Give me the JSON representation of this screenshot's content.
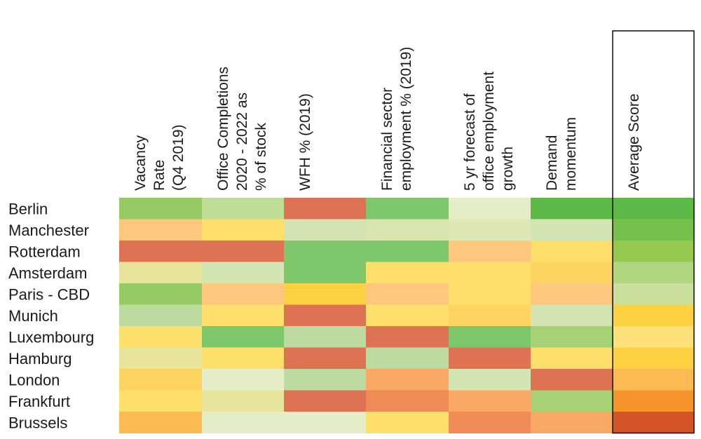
{
  "chart_data": {
    "type": "heatmap",
    "title": "",
    "columns": [
      {
        "lines": [
          "Vacancy",
          "Rate",
          "(Q4 2019)"
        ]
      },
      {
        "lines": [
          "Office Completions",
          "2020 - 2022 as",
          "% of stock"
        ]
      },
      {
        "lines": [
          "WFH % (2019)"
        ]
      },
      {
        "lines": [
          "Financial sector",
          "employment % (2019)"
        ]
      },
      {
        "lines": [
          "5 yr forecast of",
          "office employment",
          "growth"
        ]
      },
      {
        "lines": [
          "Demand",
          "momentum"
        ]
      },
      {
        "lines": [
          "Average Score"
        ]
      }
    ],
    "rows": [
      "Berlin",
      "Manchester",
      "Rotterdam",
      "Amsterdam",
      "Paris - CBD",
      "Munich",
      "Luxembourg",
      "Hamburg",
      "London",
      "Frankfurt",
      "Brussels"
    ],
    "highlight_column": 6,
    "colors": [
      [
        "#95ca64",
        "#bfdd97",
        "#dd7352",
        "#7ec76a",
        "#e6eec8",
        "#5cb947",
        "#5cb947"
      ],
      [
        "#fdc77d",
        "#fde06b",
        "#d3e3b3",
        "#d8e5ae",
        "#dfe8b5",
        "#d2e5b3",
        "#76c04c"
      ],
      [
        "#dd7352",
        "#dd7352",
        "#7ec76a",
        "#7ec76a",
        "#fdc77d",
        "#fde06b",
        "#95c94f"
      ],
      [
        "#e6e59b",
        "#d2e5b3",
        "#7ec76a",
        "#fde06b",
        "#fde06b",
        "#fdd45f",
        "#b0d77f"
      ],
      [
        "#95ca64",
        "#fdc77d",
        "#fdd142",
        "#fdc77d",
        "#fde06b",
        "#fdc77d",
        "#c9e09f"
      ],
      [
        "#bddaa0",
        "#fde06b",
        "#dd7352",
        "#fde06b",
        "#fdd45f",
        "#d2e5b3",
        "#fdd142"
      ],
      [
        "#fde06b",
        "#7ec76a",
        "#bddaa0",
        "#dd7352",
        "#7ec76a",
        "#a6d175",
        "#fce07a"
      ],
      [
        "#e6e59b",
        "#fde06b",
        "#dd7352",
        "#bddaa0",
        "#dd7352",
        "#fde06b",
        "#fdd142"
      ],
      [
        "#fdd45f",
        "#e6eec8",
        "#bddaa0",
        "#f9a964",
        "#d2e5b3",
        "#dd7352",
        "#fbbb52"
      ],
      [
        "#fde06b",
        "#e6e59b",
        "#dd7352",
        "#f08a56",
        "#f9a964",
        "#a6d175",
        "#f7942c"
      ],
      [
        "#fbbb52",
        "#e6eec8",
        "#e6eec8",
        "#fde06b",
        "#f08a56",
        "#f9a964",
        "#d4542a"
      ]
    ]
  }
}
